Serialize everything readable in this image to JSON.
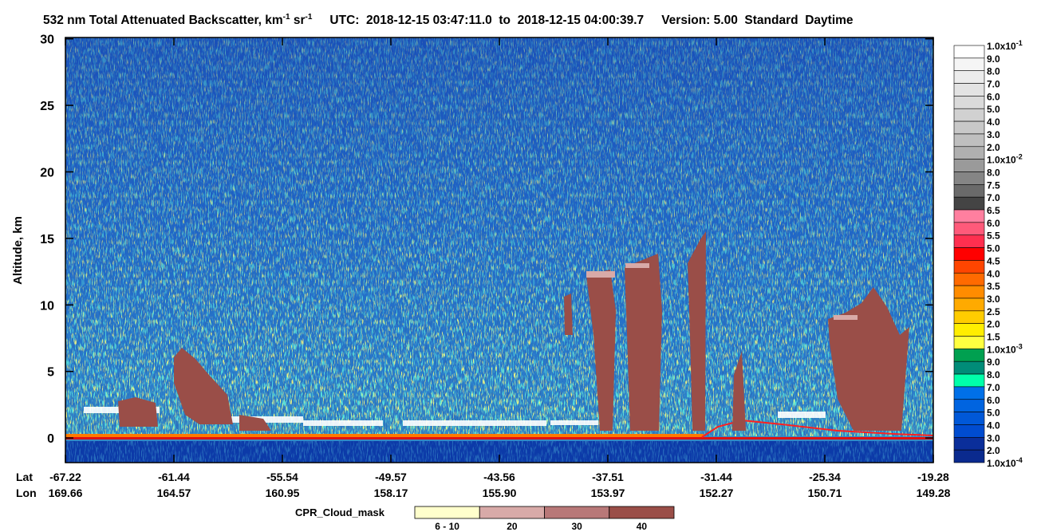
{
  "chart_data": {
    "type": "curtain",
    "title_parts": [
      {
        "text": "532 nm Total Attenuated Backscatter, km"
      },
      {
        "sup": "-1"
      },
      {
        "text": " sr"
      },
      {
        "sup": "-1"
      }
    ],
    "utc": "UTC:  2018-12-15 03:47:11.0  to  2018-12-15 04:00:39.7",
    "version": "Version: 5.00  Standard  Daytime",
    "ylabel": "Altitude, km",
    "ylim": [
      -1.85,
      30.1
    ],
    "yticks": [
      0,
      5,
      10,
      15,
      20,
      25,
      30
    ],
    "x_row_labels": [
      "Lat",
      "Lon"
    ],
    "x_ticks": [
      {
        "lat": "-67.22",
        "lon": "169.66"
      },
      {
        "lat": "-61.44",
        "lon": "164.57"
      },
      {
        "lat": "-55.54",
        "lon": "160.95"
      },
      {
        "lat": "-49.57",
        "lon": "158.17"
      },
      {
        "lat": "-43.56",
        "lon": "155.90"
      },
      {
        "lat": "-37.51",
        "lon": "153.97"
      },
      {
        "lat": "-31.44",
        "lon": "152.27"
      },
      {
        "lat": "-25.34",
        "lon": "150.71"
      },
      {
        "lat": "-19.28",
        "lon": "149.28"
      }
    ],
    "colorbar": {
      "labels": [
        {
          "text": "1.0x10",
          "sup": "-1"
        },
        "9.0",
        "8.0",
        "7.0",
        "6.0",
        "5.0",
        "4.0",
        "3.0",
        "2.0",
        {
          "text": "1.0x10",
          "sup": "-2"
        },
        "8.0",
        "7.5",
        "7.0",
        "6.5",
        "6.0",
        "5.5",
        "5.0",
        "4.5",
        "4.0",
        "3.5",
        "3.0",
        "2.5",
        "2.0",
        "1.5",
        {
          "text": "1.0x10",
          "sup": "-3"
        },
        "9.0",
        "8.0",
        "7.0",
        "6.0",
        "5.0",
        "4.0",
        "3.0",
        "2.0",
        {
          "text": "1.0x10",
          "sup": "-4"
        }
      ],
      "colors": [
        "#ffffff",
        "#f5f5f5",
        "#ececec",
        "#e3e3e3",
        "#dadada",
        "#d1d1d1",
        "#c8c8c8",
        "#bfbfbf",
        "#b0b0b0",
        "#9a9a9a",
        "#858585",
        "#6a6a6a",
        "#444444",
        "#ff7f9f",
        "#ff5a7a",
        "#ff2f4f",
        "#ff0000",
        "#ff4500",
        "#ff6a00",
        "#ff8c00",
        "#ffaa00",
        "#ffcc00",
        "#ffee00",
        "#ffff40",
        "#00a050",
        "#008c78",
        "#00ffaa",
        "#0070e8",
        "#0064e0",
        "#0058d8",
        "#004cd0",
        "#0a2e9a",
        "#0a2a8e"
      ]
    },
    "cloud_mask_legend": {
      "label": "CPR_Cloud_mask",
      "categories": [
        "6 - 10",
        "20",
        "30",
        "40"
      ],
      "colors": [
        "#ffffcc",
        "#d8aaa8",
        "#b87878",
        "#9a4e48"
      ]
    }
  }
}
